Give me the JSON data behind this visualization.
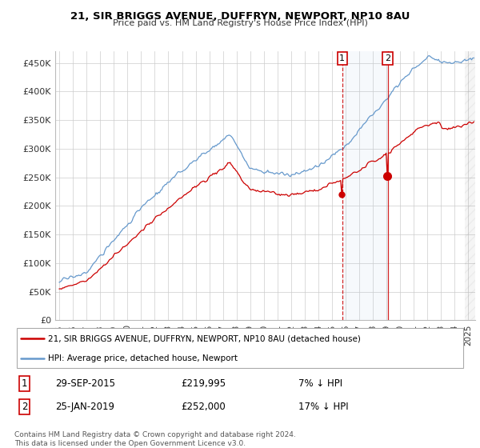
{
  "title": "21, SIR BRIGGS AVENUE, DUFFRYN, NEWPORT, NP10 8AU",
  "subtitle": "Price paid vs. HM Land Registry's House Price Index (HPI)",
  "ylim": [
    0,
    470000
  ],
  "yticks": [
    0,
    50000,
    100000,
    150000,
    200000,
    250000,
    300000,
    350000,
    400000,
    450000
  ],
  "ytick_labels": [
    "£0",
    "£50K",
    "£100K",
    "£150K",
    "£200K",
    "£250K",
    "£300K",
    "£350K",
    "£400K",
    "£450K"
  ],
  "grid_color": "#cccccc",
  "hpi_line_color": "#6699cc",
  "price_color": "#cc0000",
  "transaction1_year": 2015.75,
  "transaction1_price": 219995,
  "transaction1_hpi_diff": "7% ↓ HPI",
  "transaction1_date": "29-SEP-2015",
  "transaction2_year": 2019.08,
  "transaction2_price": 252000,
  "transaction2_hpi_diff": "17% ↓ HPI",
  "transaction2_date": "25-JAN-2019",
  "legend_label1": "21, SIR BRIGGS AVENUE, DUFFRYN, NEWPORT, NP10 8AU (detached house)",
  "legend_label2": "HPI: Average price, detached house, Newport",
  "footer": "Contains HM Land Registry data © Crown copyright and database right 2024.\nThis data is licensed under the Open Government Licence v3.0.",
  "x_start_year": 1995,
  "x_end_year": 2025
}
